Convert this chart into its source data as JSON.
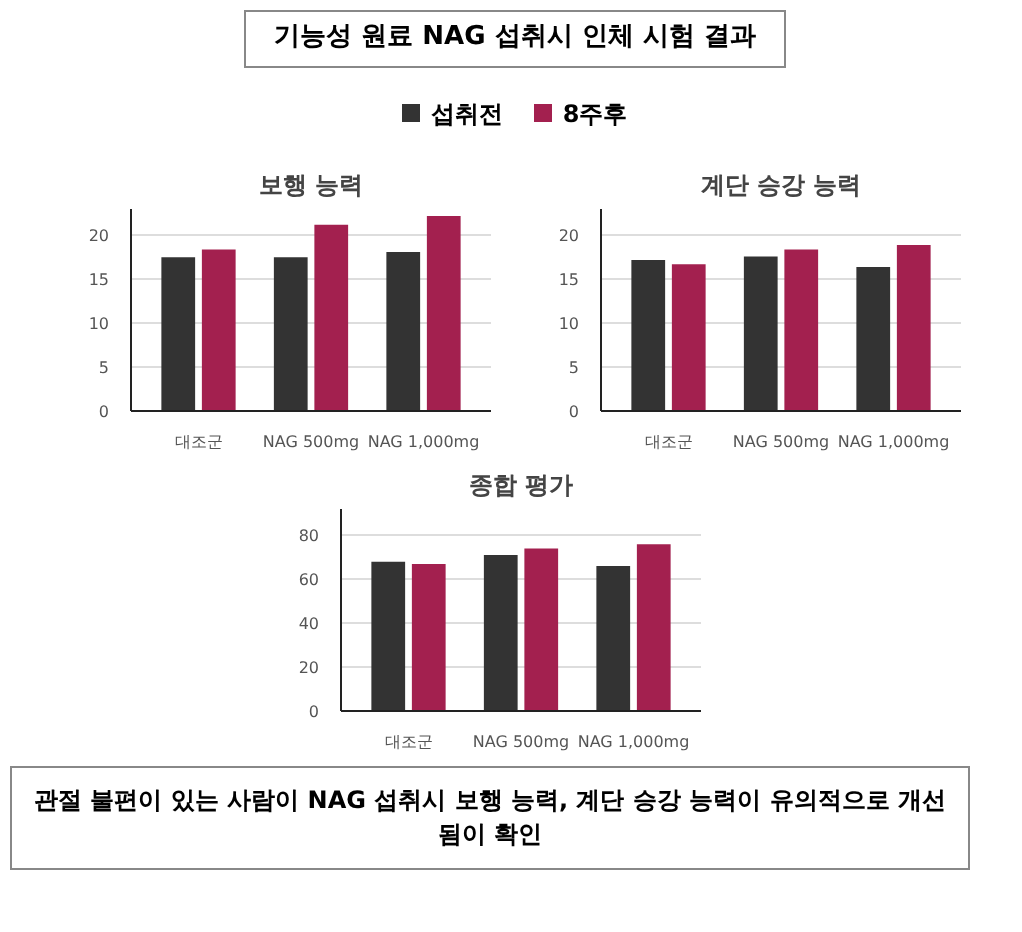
{
  "chart_data": [
    {
      "type": "bar",
      "title": "보행 능력",
      "annotations": [
        "기능성 원료 NAG 섭취시 인체 시험 결과"
      ],
      "legend": "top",
      "categories": [
        "대조군",
        "NAG 500mg",
        "NAG 1,000mg"
      ],
      "series": [
        {
          "name": "섭취전",
          "color": "#333333",
          "values": [
            17.5,
            17.5,
            18.1
          ]
        },
        {
          "name": "8주후",
          "color": "#a3204f",
          "values": [
            18.4,
            21.2,
            22.2
          ]
        }
      ],
      "ylim": [
        0,
        23
      ],
      "yticks": [
        0,
        5,
        10,
        15,
        20
      ],
      "grid": "y"
    },
    {
      "type": "bar",
      "title": "계단 승강 능력",
      "categories": [
        "대조군",
        "NAG 500mg",
        "NAG 1,000mg"
      ],
      "series": [
        {
          "color": "#333333",
          "values": [
            17.2,
            17.6,
            16.4
          ]
        },
        {
          "color": "#a3204f",
          "values": [
            16.7,
            18.4,
            18.9
          ]
        }
      ],
      "ylim": [
        0,
        23
      ],
      "yticks": [
        0,
        5,
        10,
        15,
        20
      ],
      "grid": "y"
    },
    {
      "type": "bar",
      "title": "종합 평가",
      "annotations": [
        "관절 불편이 있는 사람이 NAG 섭취시 보행 능력, 계단 승강 능력이 유의적으로 개선됨이 확인"
      ],
      "categories": [
        "대조군",
        "NAG 500mg",
        "NAG 1,000mg"
      ],
      "series": [
        {
          "color": "#333333",
          "values": [
            68,
            71,
            66
          ]
        },
        {
          "color": "#a3204f",
          "values": [
            67,
            74,
            76
          ]
        }
      ],
      "ylim": [
        0,
        92
      ],
      "yticks": [
        0,
        20,
        40,
        60,
        80
      ],
      "grid": "y"
    }
  ]
}
